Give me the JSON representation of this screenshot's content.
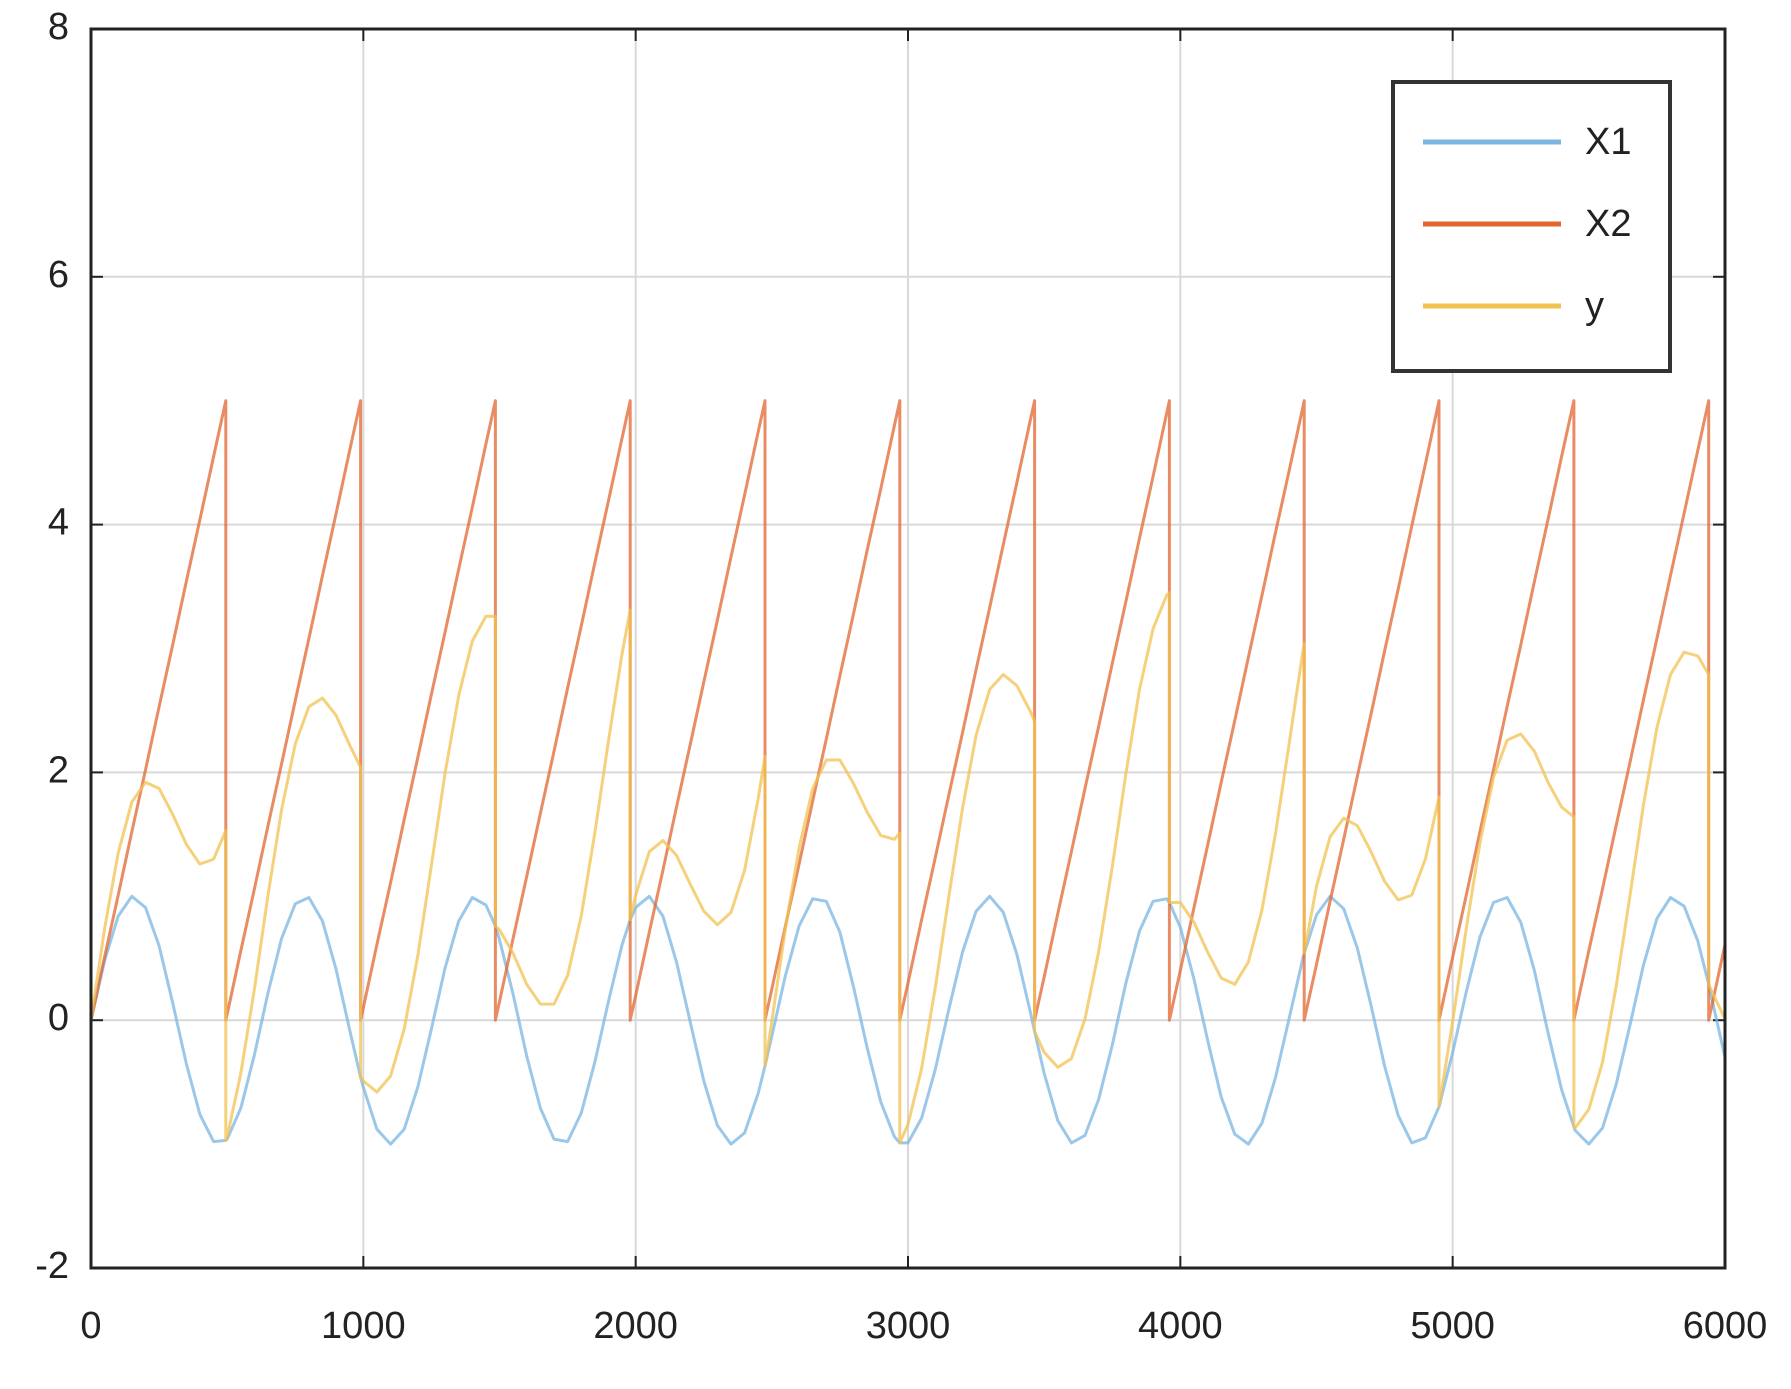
{
  "chart_data": {
    "type": "line",
    "x": [
      0,
      50,
      100,
      150,
      200,
      250,
      300,
      350,
      400,
      450,
      495,
      495,
      500,
      550,
      600,
      650,
      700,
      750,
      800,
      850,
      900,
      950,
      990,
      990,
      1000,
      1050,
      1100,
      1150,
      1200,
      1250,
      1300,
      1350,
      1400,
      1450,
      1485,
      1485,
      1500,
      1550,
      1600,
      1650,
      1700,
      1750,
      1800,
      1850,
      1900,
      1950,
      1980,
      1980,
      2000,
      2050,
      2100,
      2150,
      2200,
      2250,
      2300,
      2350,
      2400,
      2450,
      2475,
      2475,
      2500,
      2550,
      2600,
      2650,
      2700,
      2750,
      2800,
      2850,
      2900,
      2950,
      2970,
      2970,
      3000,
      3050,
      3100,
      3150,
      3200,
      3250,
      3300,
      3350,
      3400,
      3450,
      3465,
      3465,
      3500,
      3550,
      3600,
      3650,
      3700,
      3750,
      3800,
      3850,
      3900,
      3950,
      3960,
      3960,
      4000,
      4050,
      4100,
      4150,
      4200,
      4250,
      4300,
      4350,
      4400,
      4450,
      4455,
      4455,
      4500,
      4550,
      4600,
      4650,
      4700,
      4750,
      4800,
      4850,
      4900,
      4950,
      4950,
      5000,
      5050,
      5100,
      5150,
      5200,
      5250,
      5300,
      5350,
      5400,
      5445,
      5445,
      5450,
      5500,
      5550,
      5600,
      5650,
      5700,
      5750,
      5800,
      5850,
      5900,
      5940,
      5940,
      5950,
      6000
    ],
    "series": [
      {
        "name": "X1",
        "color": "#7ab6e2",
        "values": [
          0,
          0.48,
          0.84,
          1.0,
          0.91,
          0.6,
          0.14,
          -0.35,
          -0.76,
          -0.98,
          -0.97,
          -0.97,
          -0.96,
          -0.71,
          -0.28,
          0.22,
          0.66,
          0.94,
          0.99,
          0.8,
          0.41,
          -0.08,
          -0.46,
          -0.46,
          -0.54,
          -0.88,
          -1.0,
          -0.88,
          -0.54,
          -0.07,
          0.42,
          0.8,
          0.99,
          0.93,
          0.76,
          0.76,
          0.65,
          0.21,
          -0.29,
          -0.71,
          -0.96,
          -0.98,
          -0.75,
          -0.34,
          0.15,
          0.61,
          0.81,
          0.81,
          0.91,
          1.0,
          0.84,
          0.47,
          -0.01,
          -0.49,
          -0.85,
          -1.0,
          -0.91,
          -0.59,
          -0.37,
          -0.37,
          -0.13,
          0.36,
          0.76,
          0.98,
          0.96,
          0.71,
          0.27,
          -0.22,
          -0.66,
          -0.94,
          -0.99,
          -0.99,
          -0.99,
          -0.79,
          -0.4,
          0.09,
          0.55,
          0.88,
          1.0,
          0.87,
          0.53,
          0.06,
          -0.09,
          -0.09,
          -0.43,
          -0.81,
          -0.99,
          -0.93,
          -0.64,
          -0.2,
          0.3,
          0.72,
          0.96,
          0.98,
          0.95,
          0.95,
          0.75,
          0.33,
          -0.16,
          -0.62,
          -0.92,
          -1.0,
          -0.83,
          -0.46,
          0.02,
          0.5,
          0.54,
          0.54,
          0.85,
          1.0,
          0.9,
          0.58,
          0.12,
          -0.37,
          -0.77,
          -0.99,
          -0.95,
          -0.7,
          -0.7,
          -0.26,
          0.23,
          0.67,
          0.95,
          0.99,
          0.79,
          0.4,
          -0.1,
          -0.56,
          -0.86,
          -0.86,
          -0.89,
          -1.0,
          -0.87,
          -0.52,
          -0.05,
          0.44,
          0.82,
          0.99,
          0.92,
          0.64,
          0.29,
          0.29,
          0.19,
          -0.3
        ]
      },
      {
        "name": "X2",
        "color": "#e2652f",
        "values": [
          0,
          0.51,
          1.01,
          1.52,
          2.02,
          2.53,
          3.03,
          3.54,
          4.04,
          4.55,
          5,
          0,
          0.05,
          0.56,
          1.06,
          1.57,
          2.07,
          2.58,
          3.08,
          3.59,
          4.09,
          4.6,
          5,
          0,
          0.1,
          0.61,
          1.11,
          1.62,
          2.12,
          2.63,
          3.13,
          3.64,
          4.14,
          4.65,
          5,
          0,
          0.15,
          0.66,
          1.16,
          1.67,
          2.17,
          2.68,
          3.18,
          3.69,
          4.19,
          4.7,
          5,
          0,
          0.2,
          0.71,
          1.21,
          1.72,
          2.22,
          2.73,
          3.23,
          3.74,
          4.24,
          4.75,
          5,
          0,
          0.25,
          0.76,
          1.26,
          1.77,
          2.27,
          2.78,
          3.28,
          3.79,
          4.29,
          4.8,
          5,
          0,
          0.3,
          0.81,
          1.31,
          1.82,
          2.32,
          2.83,
          3.33,
          3.84,
          4.34,
          4.85,
          5,
          0,
          0.35,
          0.86,
          1.36,
          1.87,
          2.37,
          2.88,
          3.38,
          3.89,
          4.39,
          4.9,
          5,
          0,
          0.4,
          0.91,
          1.41,
          1.92,
          2.42,
          2.93,
          3.43,
          3.94,
          4.44,
          4.95,
          5,
          0,
          0.45,
          0.96,
          1.46,
          1.97,
          2.47,
          2.98,
          3.48,
          3.99,
          4.49,
          5,
          0,
          0.51,
          1.01,
          1.52,
          2.02,
          2.53,
          3.03,
          3.54,
          4.04,
          4.55,
          5,
          0,
          0.05,
          0.56,
          1.06,
          1.57,
          2.07,
          2.58,
          3.08,
          3.59,
          4.09,
          4.6,
          5,
          0,
          0.1,
          0.61
        ]
      },
      {
        "name": "y",
        "color": "#f2c14f",
        "values": [
          0,
          0.74,
          1.35,
          1.76,
          1.92,
          1.87,
          1.66,
          1.42,
          1.26,
          1.3,
          1.53,
          -0.97,
          -0.94,
          -0.43,
          0.25,
          1.01,
          1.7,
          2.23,
          2.53,
          2.6,
          2.46,
          2.22,
          2.04,
          -0.46,
          -0.49,
          -0.58,
          -0.45,
          -0.07,
          0.52,
          1.25,
          1.99,
          2.62,
          3.06,
          3.26,
          3.26,
          0.76,
          0.73,
          0.54,
          0.29,
          0.13,
          0.13,
          0.36,
          0.84,
          1.51,
          2.25,
          2.96,
          3.31,
          0.81,
          1.01,
          1.36,
          1.45,
          1.33,
          1.1,
          0.88,
          0.77,
          0.87,
          1.21,
          1.79,
          2.13,
          -0.37,
          -0.01,
          0.74,
          1.39,
          1.87,
          2.1,
          2.1,
          1.91,
          1.68,
          1.49,
          1.46,
          1.51,
          -0.99,
          -0.84,
          -0.39,
          0.26,
          1.0,
          1.71,
          2.3,
          2.67,
          2.79,
          2.7,
          2.49,
          2.41,
          -0.09,
          -0.26,
          -0.38,
          -0.31,
          0.01,
          0.55,
          1.24,
          1.99,
          2.67,
          3.16,
          3.43,
          3.45,
          0.95,
          0.95,
          0.79,
          0.55,
          0.34,
          0.29,
          0.47,
          0.89,
          1.51,
          2.24,
          2.98,
          3.04,
          0.54,
          1.08,
          1.48,
          1.63,
          1.57,
          1.36,
          1.12,
          0.97,
          1.01,
          1.3,
          1.8,
          -0.7,
          -0.01,
          0.74,
          1.43,
          1.96,
          2.26,
          2.31,
          2.17,
          1.92,
          1.72,
          1.64,
          -0.86,
          -0.87,
          -0.72,
          -0.34,
          0.27,
          0.99,
          1.73,
          2.36,
          2.79,
          2.97,
          2.94,
          2.79,
          0.29,
          0.24,
          0.01
        ]
      }
    ],
    "xlim": [
      0,
      6000
    ],
    "xticks": [
      0,
      1000,
      2000,
      3000,
      4000,
      5000,
      6000
    ],
    "ylim": [
      -2,
      8
    ],
    "yticks": [
      -2,
      0,
      2,
      4,
      6,
      8
    ],
    "grid": true,
    "legend": "northeast"
  }
}
